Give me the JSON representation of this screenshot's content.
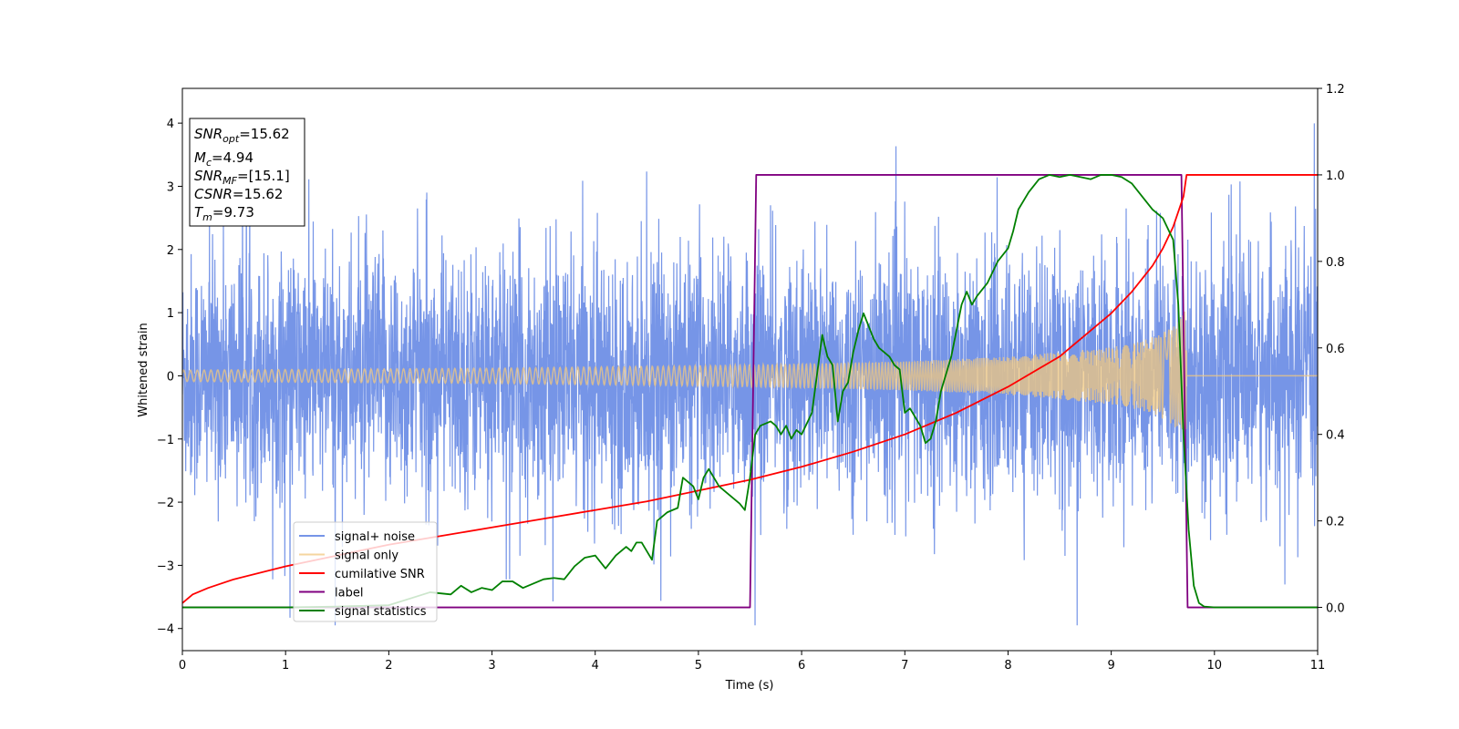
{
  "chart_data": {
    "type": "line",
    "xlabel": "Time (s)",
    "ylabel": "Whitened strain",
    "xlim": [
      0,
      11
    ],
    "ylim_left": [
      -4.35,
      4.55
    ],
    "ylim_right": [
      -0.1,
      1.2
    ],
    "x_ticks": [
      0,
      1,
      2,
      3,
      4,
      5,
      6,
      7,
      8,
      9,
      10,
      11
    ],
    "x_tick_labels": [
      "0",
      "1",
      "2",
      "3",
      "4",
      "5",
      "6",
      "7",
      "8",
      "9",
      "10",
      "11"
    ],
    "y_left_ticks": [
      -4,
      -3,
      -2,
      -1,
      0,
      1,
      2,
      3,
      4
    ],
    "y_left_tick_labels": [
      "−4",
      "−3",
      "−2",
      "−1",
      "0",
      "1",
      "2",
      "3",
      "4"
    ],
    "y_right_ticks": [
      0.0,
      0.2,
      0.4,
      0.6,
      0.8,
      1.0,
      1.2
    ],
    "y_right_tick_labels": [
      "0.0",
      "0.2",
      "0.4",
      "0.6",
      "0.8",
      "1.0",
      "1.2"
    ],
    "grid": false,
    "legend_position": "lower-left",
    "info_box": {
      "snr_opt_value": "=15.62",
      "mc_value": "=4.94",
      "snr_mf_value": "=[15.1]",
      "csnr_value": "=15.62",
      "tm_value": "=9.73",
      "snr_sym": "SNR",
      "snr_opt_sub": "opt",
      "m_sym": "M",
      "mc_sub": "c",
      "snr_mf_sub": "MF",
      "csnr_sym": "CSNR",
      "t_sym": "T",
      "tm_sub": "m"
    },
    "series": [
      {
        "name": "signal+ noise",
        "axis": "left",
        "color": "#6f8fe6",
        "description_values": {
          "noise_std": 0.95,
          "min": -3.95,
          "max": 4.18,
          "x_range": [
            0,
            11
          ]
        }
      },
      {
        "name": "signal only",
        "axis": "left",
        "color": "#f2c87f",
        "envelope": {
          "x": [
            0,
            1,
            2,
            3,
            4,
            5,
            6,
            7,
            8,
            9,
            9.3,
            9.5,
            9.65,
            9.73
          ],
          "amp": [
            0.09,
            0.1,
            0.11,
            0.12,
            0.14,
            0.16,
            0.19,
            0.23,
            0.3,
            0.45,
            0.55,
            0.68,
            0.85,
            1.07
          ]
        },
        "merger_time": 9.73
      },
      {
        "name": "cumilative SNR",
        "axis": "right",
        "color": "#ff0000",
        "x": [
          0,
          0.1,
          0.25,
          0.5,
          1,
          1.5,
          2,
          2.5,
          3,
          3.5,
          4,
          4.5,
          5,
          5.5,
          6,
          6.5,
          7,
          7.5,
          8,
          8.5,
          9,
          9.2,
          9.4,
          9.5,
          9.6,
          9.7,
          9.73,
          11
        ],
        "values": [
          0.01,
          0.03,
          0.045,
          0.065,
          0.095,
          0.12,
          0.145,
          0.165,
          0.185,
          0.205,
          0.225,
          0.245,
          0.27,
          0.295,
          0.325,
          0.36,
          0.4,
          0.45,
          0.51,
          0.58,
          0.68,
          0.73,
          0.79,
          0.83,
          0.88,
          0.95,
          1.0,
          1.0
        ]
      },
      {
        "name": "label",
        "axis": "right",
        "color": "#800080",
        "x": [
          0,
          5.5,
          5.56,
          9.68,
          9.74,
          11
        ],
        "values": [
          0,
          0,
          1,
          1,
          0,
          0
        ]
      },
      {
        "name": "signal statistics",
        "axis": "right",
        "color": "#008000",
        "x": [
          0,
          1,
          1.5,
          2.0,
          2.2,
          2.4,
          2.6,
          2.7,
          2.8,
          2.9,
          3.0,
          3.1,
          3.2,
          3.3,
          3.4,
          3.5,
          3.6,
          3.7,
          3.8,
          3.9,
          4.0,
          4.1,
          4.2,
          4.3,
          4.35,
          4.4,
          4.45,
          4.5,
          4.55,
          4.6,
          4.7,
          4.75,
          4.8,
          4.85,
          4.9,
          4.95,
          5.0,
          5.05,
          5.1,
          5.2,
          5.3,
          5.4,
          5.45,
          5.5,
          5.55,
          5.6,
          5.7,
          5.75,
          5.8,
          5.85,
          5.9,
          5.95,
          6.0,
          6.1,
          6.2,
          6.25,
          6.3,
          6.35,
          6.4,
          6.45,
          6.5,
          6.55,
          6.6,
          6.65,
          6.7,
          6.75,
          6.8,
          6.85,
          6.9,
          6.95,
          7.0,
          7.05,
          7.1,
          7.15,
          7.2,
          7.25,
          7.3,
          7.35,
          7.4,
          7.45,
          7.5,
          7.55,
          7.6,
          7.65,
          7.7,
          7.8,
          7.9,
          8.0,
          8.05,
          8.1,
          8.2,
          8.3,
          8.4,
          8.5,
          8.6,
          8.7,
          8.8,
          8.9,
          9.0,
          9.1,
          9.2,
          9.3,
          9.4,
          9.5,
          9.6,
          9.65,
          9.7,
          9.75,
          9.8,
          9.85,
          9.9,
          10.0,
          11.0
        ],
        "values": [
          0.0,
          0.0,
          0.002,
          0.005,
          0.02,
          0.035,
          0.03,
          0.05,
          0.035,
          0.045,
          0.04,
          0.06,
          0.06,
          0.045,
          0.055,
          0.065,
          0.068,
          0.065,
          0.095,
          0.115,
          0.12,
          0.09,
          0.12,
          0.14,
          0.13,
          0.15,
          0.15,
          0.13,
          0.11,
          0.2,
          0.22,
          0.225,
          0.23,
          0.3,
          0.29,
          0.28,
          0.25,
          0.3,
          0.32,
          0.28,
          0.26,
          0.24,
          0.225,
          0.3,
          0.4,
          0.42,
          0.43,
          0.42,
          0.4,
          0.42,
          0.39,
          0.41,
          0.4,
          0.45,
          0.63,
          0.58,
          0.56,
          0.43,
          0.5,
          0.52,
          0.59,
          0.64,
          0.68,
          0.65,
          0.62,
          0.6,
          0.59,
          0.58,
          0.56,
          0.55,
          0.45,
          0.46,
          0.44,
          0.42,
          0.38,
          0.39,
          0.43,
          0.5,
          0.54,
          0.58,
          0.64,
          0.7,
          0.73,
          0.7,
          0.72,
          0.75,
          0.8,
          0.83,
          0.87,
          0.92,
          0.96,
          0.99,
          1.0,
          0.995,
          1.0,
          0.995,
          0.99,
          1.0,
          1.0,
          0.995,
          0.98,
          0.95,
          0.92,
          0.9,
          0.85,
          0.7,
          0.4,
          0.18,
          0.05,
          0.01,
          0.002,
          0.0,
          0.0
        ]
      }
    ]
  }
}
